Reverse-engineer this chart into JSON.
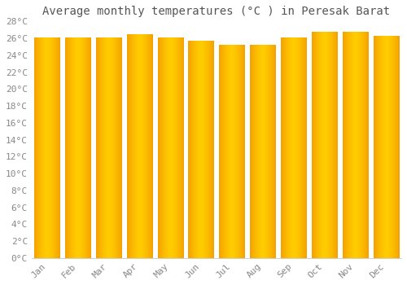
{
  "title": "Average monthly temperatures (°C ) in Peresak Barat",
  "months": [
    "Jan",
    "Feb",
    "Mar",
    "Apr",
    "May",
    "Jun",
    "Jul",
    "Aug",
    "Sep",
    "Oct",
    "Nov",
    "Dec"
  ],
  "values": [
    26.1,
    26.1,
    26.1,
    26.5,
    26.1,
    25.7,
    25.2,
    25.2,
    26.1,
    26.7,
    26.7,
    26.3
  ],
  "bar_color_center": "#FFCC00",
  "bar_color_edge": "#F5A000",
  "background_color": "#FFFFFF",
  "plot_bg_color": "#F0F0F8",
  "grid_color": "#DDDDEE",
  "title_color": "#555555",
  "tick_color": "#888888",
  "ylim": [
    0,
    28
  ],
  "yticks": [
    0,
    2,
    4,
    6,
    8,
    10,
    12,
    14,
    16,
    18,
    20,
    22,
    24,
    26,
    28
  ],
  "title_fontsize": 10,
  "tick_fontsize": 8
}
